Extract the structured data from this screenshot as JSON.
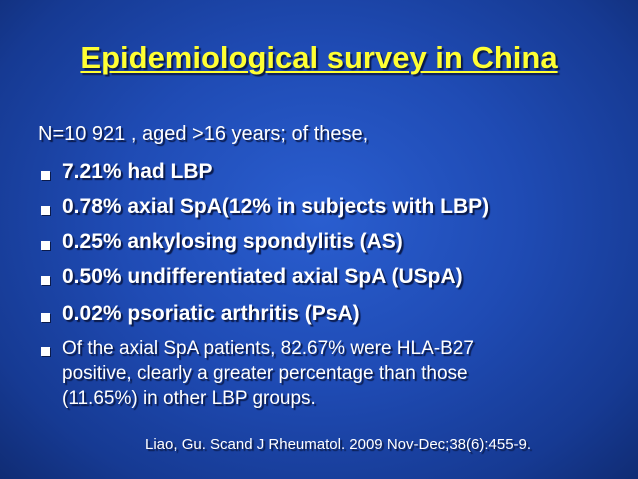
{
  "slide": {
    "title": "Epidemiological survey in China",
    "intro": "N=10 921 , aged >16 years; of these,",
    "bullets": [
      "7.21% had LBP",
      "0.78% axial SpA(12% in subjects with LBP)",
      "0.25% ankylosing spondylitis (AS)",
      "0.50% undifferentiated axial SpA (USpA)",
      "0.02% psoriatic arthritis (PsA)"
    ],
    "note_lines": [
      "Of the axial SpA patients, 82.67% were HLA-B27",
      "positive, clearly a greater percentage than those",
      "(11.65%) in other LBP groups."
    ],
    "citation": "Liao, Gu. Scand J Rheumatol. 2009 Nov-Dec;38(6):455-9."
  }
}
